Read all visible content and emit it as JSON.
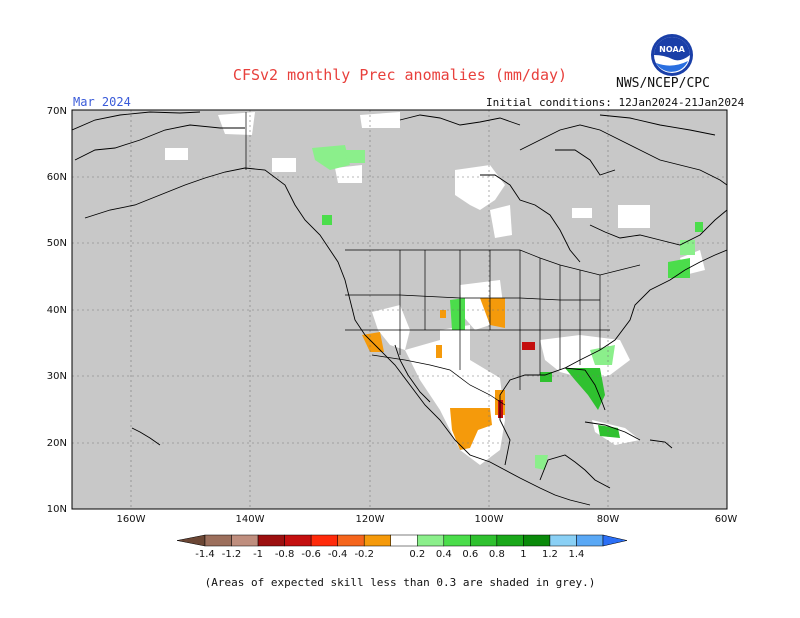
{
  "title": "CFSv2 monthly Prec anomalies (mm/day)",
  "agency": "NWS/NCEP/CPC",
  "logo": {
    "icon": "noaa-logo-icon",
    "text": "NOAA"
  },
  "target_month": "Mar 2024",
  "initial_conditions": "Initial conditions: 12Jan2024-21Jan2024",
  "footnote": "(Areas of expected skill less than 0.3 are shaded in grey.)",
  "map": {
    "lon_range": [
      -170,
      -60
    ],
    "lat_range": [
      10,
      70
    ],
    "lat_ticks": [
      "10N",
      "20N",
      "30N",
      "40N",
      "50N",
      "60N",
      "70N"
    ],
    "lon_ticks": [
      "160W",
      "140W",
      "120W",
      "100W",
      "80W",
      "60W"
    ],
    "low_skill_color": "#c8c8c8",
    "land_ocean_colors": {
      "coast": "#000000",
      "grid": "#777777"
    }
  },
  "colorbar": {
    "colors": [
      "#6b4634",
      "#9c6f5c",
      "#bf8e7e",
      "#9c0f0f",
      "#c40f0f",
      "#ff2a0a",
      "#f5651c",
      "#f59a0b",
      "#ffffff",
      "#8bef8b",
      "#4bdd4b",
      "#2fc12f",
      "#1aa81a",
      "#0a8a0a",
      "#8ad0f5",
      "#5aa8f5",
      "#2b6ff5"
    ],
    "labels": [
      "-1.4",
      "-1.2",
      "-1",
      "-0.8",
      "-0.6",
      "-0.4",
      "-0.2",
      "0.2",
      "0.4",
      "0.6",
      "0.8",
      "1",
      "1.2",
      "1.4"
    ]
  }
}
